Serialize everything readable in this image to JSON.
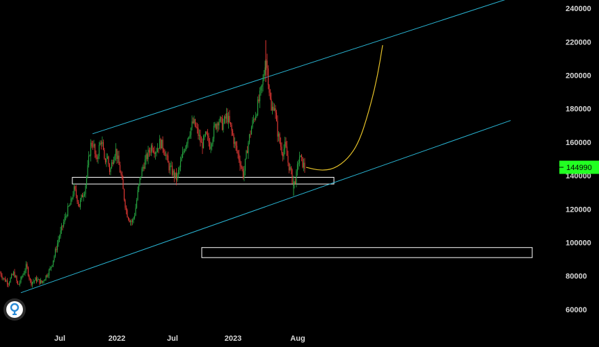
{
  "chart_data": {
    "type": "candlestick",
    "ylim": [
      50000,
      245000
    ],
    "y_ticks": [
      60000,
      80000,
      100000,
      120000,
      140000,
      160000,
      180000,
      200000,
      220000,
      240000
    ],
    "x_tick_labels": [
      "Jul",
      "2022",
      "Jul",
      "2023",
      "Aug"
    ],
    "grid": false,
    "colors": {
      "up": "#26a641",
      "down": "#e53935",
      "channel": "#2ab7d6",
      "curve": "#e6c229",
      "zone": "#ffffff",
      "badge": "#22ff22"
    },
    "last_price": "144990",
    "price_path": [
      [
        0,
        82000
      ],
      [
        6,
        78000
      ],
      [
        12,
        76000
      ],
      [
        20,
        82000
      ],
      [
        26,
        74000
      ],
      [
        32,
        80000
      ],
      [
        38,
        86000
      ],
      [
        44,
        76000
      ],
      [
        52,
        78000
      ],
      [
        60,
        76000
      ],
      [
        66,
        80000
      ],
      [
        72,
        84000
      ],
      [
        78,
        92000
      ],
      [
        84,
        102000
      ],
      [
        90,
        110000
      ],
      [
        96,
        118000
      ],
      [
        102,
        124000
      ],
      [
        106,
        132000
      ],
      [
        110,
        128000
      ],
      [
        114,
        122000
      ],
      [
        118,
        128000
      ],
      [
        122,
        132000
      ],
      [
        126,
        144000
      ],
      [
        130,
        158000
      ],
      [
        134,
        160000
      ],
      [
        138,
        148000
      ],
      [
        142,
        156000
      ],
      [
        146,
        162000
      ],
      [
        150,
        148000
      ],
      [
        154,
        152000
      ],
      [
        158,
        142000
      ],
      [
        162,
        150000
      ],
      [
        166,
        156000
      ],
      [
        170,
        148000
      ],
      [
        174,
        140000
      ],
      [
        178,
        128000
      ],
      [
        182,
        118000
      ],
      [
        186,
        114000
      ],
      [
        190,
        112000
      ],
      [
        194,
        118000
      ],
      [
        198,
        130000
      ],
      [
        202,
        140000
      ],
      [
        206,
        146000
      ],
      [
        212,
        152000
      ],
      [
        218,
        158000
      ],
      [
        224,
        155000
      ],
      [
        230,
        160000
      ],
      [
        236,
        156000
      ],
      [
        242,
        146000
      ],
      [
        248,
        142000
      ],
      [
        254,
        138000
      ],
      [
        260,
        148000
      ],
      [
        266,
        158000
      ],
      [
        272,
        166000
      ],
      [
        278,
        172000
      ],
      [
        284,
        166000
      ],
      [
        290,
        158000
      ],
      [
        296,
        164000
      ],
      [
        302,
        158000
      ],
      [
        308,
        168000
      ],
      [
        314,
        174000
      ],
      [
        320,
        170000
      ],
      [
        326,
        176000
      ],
      [
        332,
        168000
      ],
      [
        338,
        158000
      ],
      [
        344,
        150000
      ],
      [
        350,
        140000
      ],
      [
        356,
        158000
      ],
      [
        362,
        170000
      ],
      [
        368,
        178000
      ],
      [
        374,
        188000
      ],
      [
        378,
        196000
      ],
      [
        382,
        212000
      ],
      [
        386,
        196000
      ],
      [
        390,
        178000
      ],
      [
        394,
        184000
      ],
      [
        398,
        168000
      ],
      [
        402,
        160000
      ],
      [
        406,
        154000
      ],
      [
        410,
        158000
      ],
      [
        414,
        148000
      ],
      [
        418,
        142000
      ],
      [
        422,
        134000
      ],
      [
        426,
        140000
      ],
      [
        430,
        152000
      ],
      [
        434,
        148000
      ],
      [
        438,
        145000
      ]
    ],
    "projection_curve": [
      [
        440,
        145000
      ],
      [
        460,
        143000
      ],
      [
        480,
        144000
      ],
      [
        500,
        150000
      ],
      [
        516,
        160000
      ],
      [
        530,
        178000
      ],
      [
        542,
        198000
      ],
      [
        550,
        218000
      ]
    ],
    "channel_upper": [
      [
        133,
        165000
      ],
      [
        732,
        246000
      ]
    ],
    "channel_lower": [
      [
        30,
        70000
      ],
      [
        734,
        173000
      ]
    ],
    "zones": [
      {
        "x0": 104,
        "x1": 480,
        "y0": 135000,
        "y1": 139000
      },
      {
        "x0": 290,
        "x1": 765,
        "y0": 91000,
        "y1": 97000
      }
    ]
  }
}
